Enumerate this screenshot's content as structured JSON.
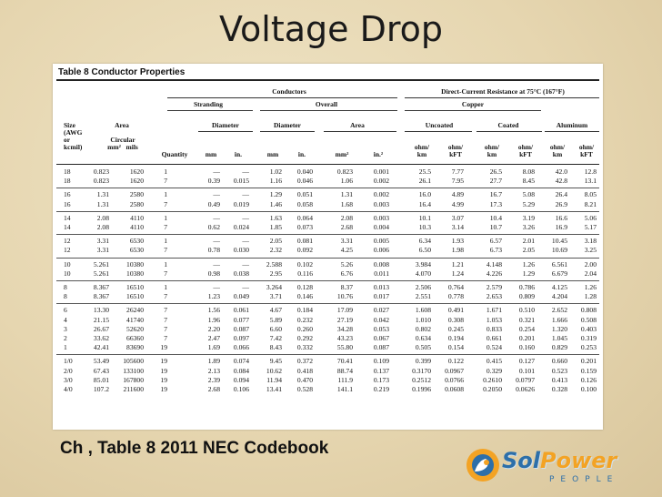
{
  "slide": {
    "title": "Voltage Drop",
    "caption": "Ch , Table 8 2011 NEC Codebook"
  },
  "logo": {
    "word_a": "Sol",
    "word_b": "Power",
    "sub": "PEOPLE",
    "icon": "sun-hand-icon",
    "colors": {
      "blue": "#2d6fa9",
      "orange": "#f3a324"
    }
  },
  "table": {
    "caption": "Table 8  Conductor Properties",
    "headers": {
      "conductors": "Conductors",
      "dcr": "Direct-Current Resistance at 75°C (167°F)",
      "stranding": "Stranding",
      "overall": "Overall",
      "copper": "Copper",
      "diameter": "Diameter",
      "diameter2": "Diameter",
      "area": "Area",
      "area2": "Area",
      "uncoated": "Uncoated",
      "coated": "Coated",
      "aluminum": "Aluminum",
      "size": "Size\n(AWG\nor\nkcmil)",
      "area_sub": "Circular\nmm²   mils",
      "quantity": "Quantity",
      "mm": "mm",
      "in": "in.",
      "mm2": "mm",
      "in2": "in.",
      "mm_sq": "mm²",
      "in_sq": "in.²",
      "ohm_km": "ohm/\nkm",
      "ohm_kft": "ohm/\nkFT",
      "ohm_km2": "ohm/\nkm",
      "ohm_kft2": "ohm/\nkFT",
      "ohm_km3": "ohm/\nkm",
      "ohm_kft3": "ohm/\nkFT"
    },
    "rows": [
      [
        "18",
        "0.823",
        "1620",
        "1",
        "—",
        "—",
        "1.02",
        "0.040",
        "0.823",
        "0.001",
        "25.5",
        "7.77",
        "26.5",
        "8.08",
        "42.0",
        "12.8"
      ],
      [
        "18",
        "0.823",
        "1620",
        "7",
        "0.39",
        "0.015",
        "1.16",
        "0.046",
        "1.06",
        "0.002",
        "26.1",
        "7.95",
        "27.7",
        "8.45",
        "42.8",
        "13.1"
      ],
      [
        "16",
        "1.31",
        "2580",
        "1",
        "—",
        "—",
        "1.29",
        "0.051",
        "1.31",
        "0.002",
        "16.0",
        "4.89",
        "16.7",
        "5.08",
        "26.4",
        "8.05"
      ],
      [
        "16",
        "1.31",
        "2580",
        "7",
        "0.49",
        "0.019",
        "1.46",
        "0.058",
        "1.68",
        "0.003",
        "16.4",
        "4.99",
        "17.3",
        "5.29",
        "26.9",
        "8.21"
      ],
      [
        "14",
        "2.08",
        "4110",
        "1",
        "—",
        "—",
        "1.63",
        "0.064",
        "2.08",
        "0.003",
        "10.1",
        "3.07",
        "10.4",
        "3.19",
        "16.6",
        "5.06"
      ],
      [
        "14",
        "2.08",
        "4110",
        "7",
        "0.62",
        "0.024",
        "1.85",
        "0.073",
        "2.68",
        "0.004",
        "10.3",
        "3.14",
        "10.7",
        "3.26",
        "16.9",
        "5.17"
      ],
      [
        "12",
        "3.31",
        "6530",
        "1",
        "—",
        "—",
        "2.05",
        "0.081",
        "3.31",
        "0.005",
        "6.34",
        "1.93",
        "6.57",
        "2.01",
        "10.45",
        "3.18"
      ],
      [
        "12",
        "3.31",
        "6530",
        "7",
        "0.78",
        "0.030",
        "2.32",
        "0.092",
        "4.25",
        "0.006",
        "6.50",
        "1.98",
        "6.73",
        "2.05",
        "10.69",
        "3.25"
      ],
      [
        "10",
        "5.261",
        "10380",
        "1",
        "—",
        "—",
        "2.588",
        "0.102",
        "5.26",
        "0.008",
        "3.984",
        "1.21",
        "4.148",
        "1.26",
        "6.561",
        "2.00"
      ],
      [
        "10",
        "5.261",
        "10380",
        "7",
        "0.98",
        "0.038",
        "2.95",
        "0.116",
        "6.76",
        "0.011",
        "4.070",
        "1.24",
        "4.226",
        "1.29",
        "6.679",
        "2.04"
      ],
      [
        "8",
        "8.367",
        "16510",
        "1",
        "—",
        "—",
        "3.264",
        "0.128",
        "8.37",
        "0.013",
        "2.506",
        "0.764",
        "2.579",
        "0.786",
        "4.125",
        "1.26"
      ],
      [
        "8",
        "8.367",
        "16510",
        "7",
        "1.23",
        "0.049",
        "3.71",
        "0.146",
        "10.76",
        "0.017",
        "2.551",
        "0.778",
        "2.653",
        "0.809",
        "4.204",
        "1.28"
      ],
      [
        "6",
        "13.30",
        "26240",
        "7",
        "1.56",
        "0.061",
        "4.67",
        "0.184",
        "17.09",
        "0.027",
        "1.608",
        "0.491",
        "1.671",
        "0.510",
        "2.652",
        "0.808"
      ],
      [
        "4",
        "21.15",
        "41740",
        "7",
        "1.96",
        "0.077",
        "5.89",
        "0.232",
        "27.19",
        "0.042",
        "1.010",
        "0.308",
        "1.053",
        "0.321",
        "1.666",
        "0.508"
      ],
      [
        "3",
        "26.67",
        "52620",
        "7",
        "2.20",
        "0.087",
        "6.60",
        "0.260",
        "34.28",
        "0.053",
        "0.802",
        "0.245",
        "0.833",
        "0.254",
        "1.320",
        "0.403"
      ],
      [
        "2",
        "33.62",
        "66360",
        "7",
        "2.47",
        "0.097",
        "7.42",
        "0.292",
        "43.23",
        "0.067",
        "0.634",
        "0.194",
        "0.661",
        "0.201",
        "1.045",
        "0.319"
      ],
      [
        "1",
        "42.41",
        "83690",
        "19",
        "1.69",
        "0.066",
        "8.43",
        "0.332",
        "55.80",
        "0.087",
        "0.505",
        "0.154",
        "0.524",
        "0.160",
        "0.829",
        "0.253"
      ],
      [
        "1/0",
        "53.49",
        "105600",
        "19",
        "1.89",
        "0.074",
        "9.45",
        "0.372",
        "70.41",
        "0.109",
        "0.399",
        "0.122",
        "0.415",
        "0.127",
        "0.660",
        "0.201"
      ],
      [
        "2/0",
        "67.43",
        "133100",
        "19",
        "2.13",
        "0.084",
        "10.62",
        "0.418",
        "88.74",
        "0.137",
        "0.3170",
        "0.0967",
        "0.329",
        "0.101",
        "0.523",
        "0.159"
      ],
      [
        "3/0",
        "85.01",
        "167800",
        "19",
        "2.39",
        "0.094",
        "11.94",
        "0.470",
        "111.9",
        "0.173",
        "0.2512",
        "0.0766",
        "0.2610",
        "0.0797",
        "0.413",
        "0.126"
      ],
      [
        "4/0",
        "107.2",
        "211600",
        "19",
        "2.68",
        "0.106",
        "13.41",
        "0.528",
        "141.1",
        "0.219",
        "0.1996",
        "0.0608",
        "0.2050",
        "0.0626",
        "0.328",
        "0.100"
      ]
    ]
  }
}
